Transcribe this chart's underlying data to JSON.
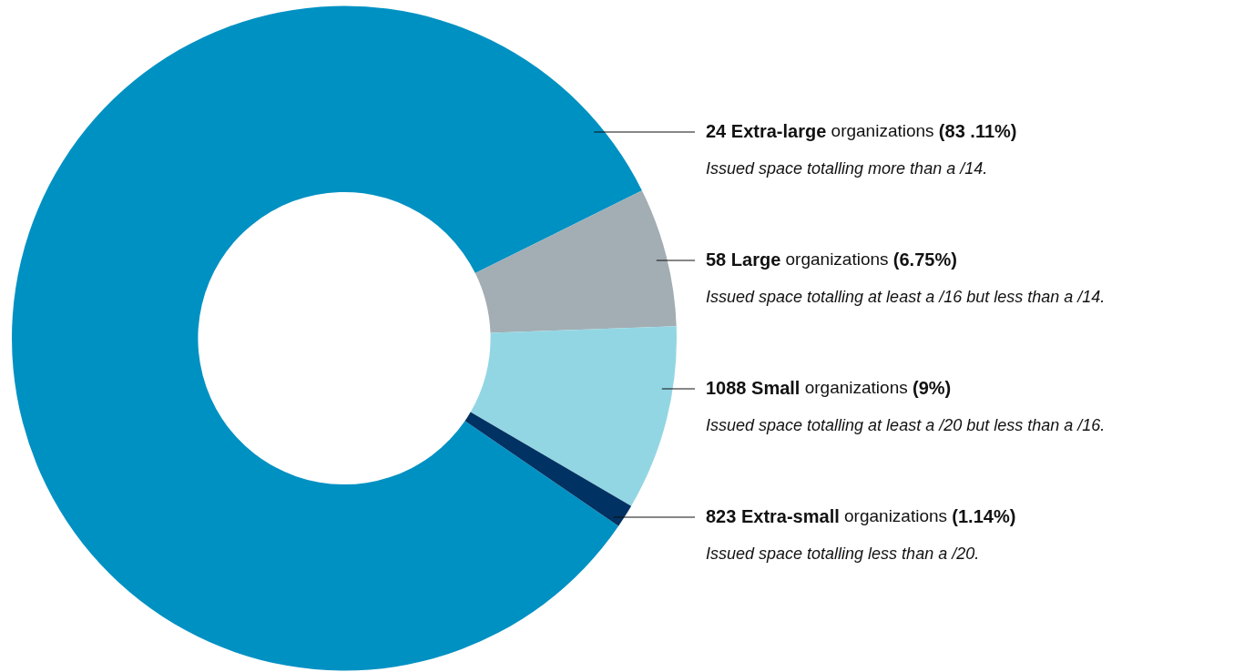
{
  "chart_data": {
    "type": "donut",
    "categories": [
      "24 Extra-large organizations",
      "58 Large organizations",
      "1088 Small organizations",
      "823 Extra-small organizations"
    ],
    "values": [
      83.11,
      6.75,
      9,
      1.14
    ],
    "colors": [
      "#0091c3",
      "#a2aeb4",
      "#93d6e3",
      "#003263"
    ],
    "value_labels": [
      "(83 .11%)",
      "(6.75%)",
      "(9%)",
      "(1.14%)"
    ],
    "annotations": [
      "Issued space totalling more than a /14.",
      "Issued space totalling at least a /16 but less than a /14.",
      "Issued space totalling at least a /20 but less than a /16.",
      "Issued space totalling less than a /20."
    ]
  }
}
